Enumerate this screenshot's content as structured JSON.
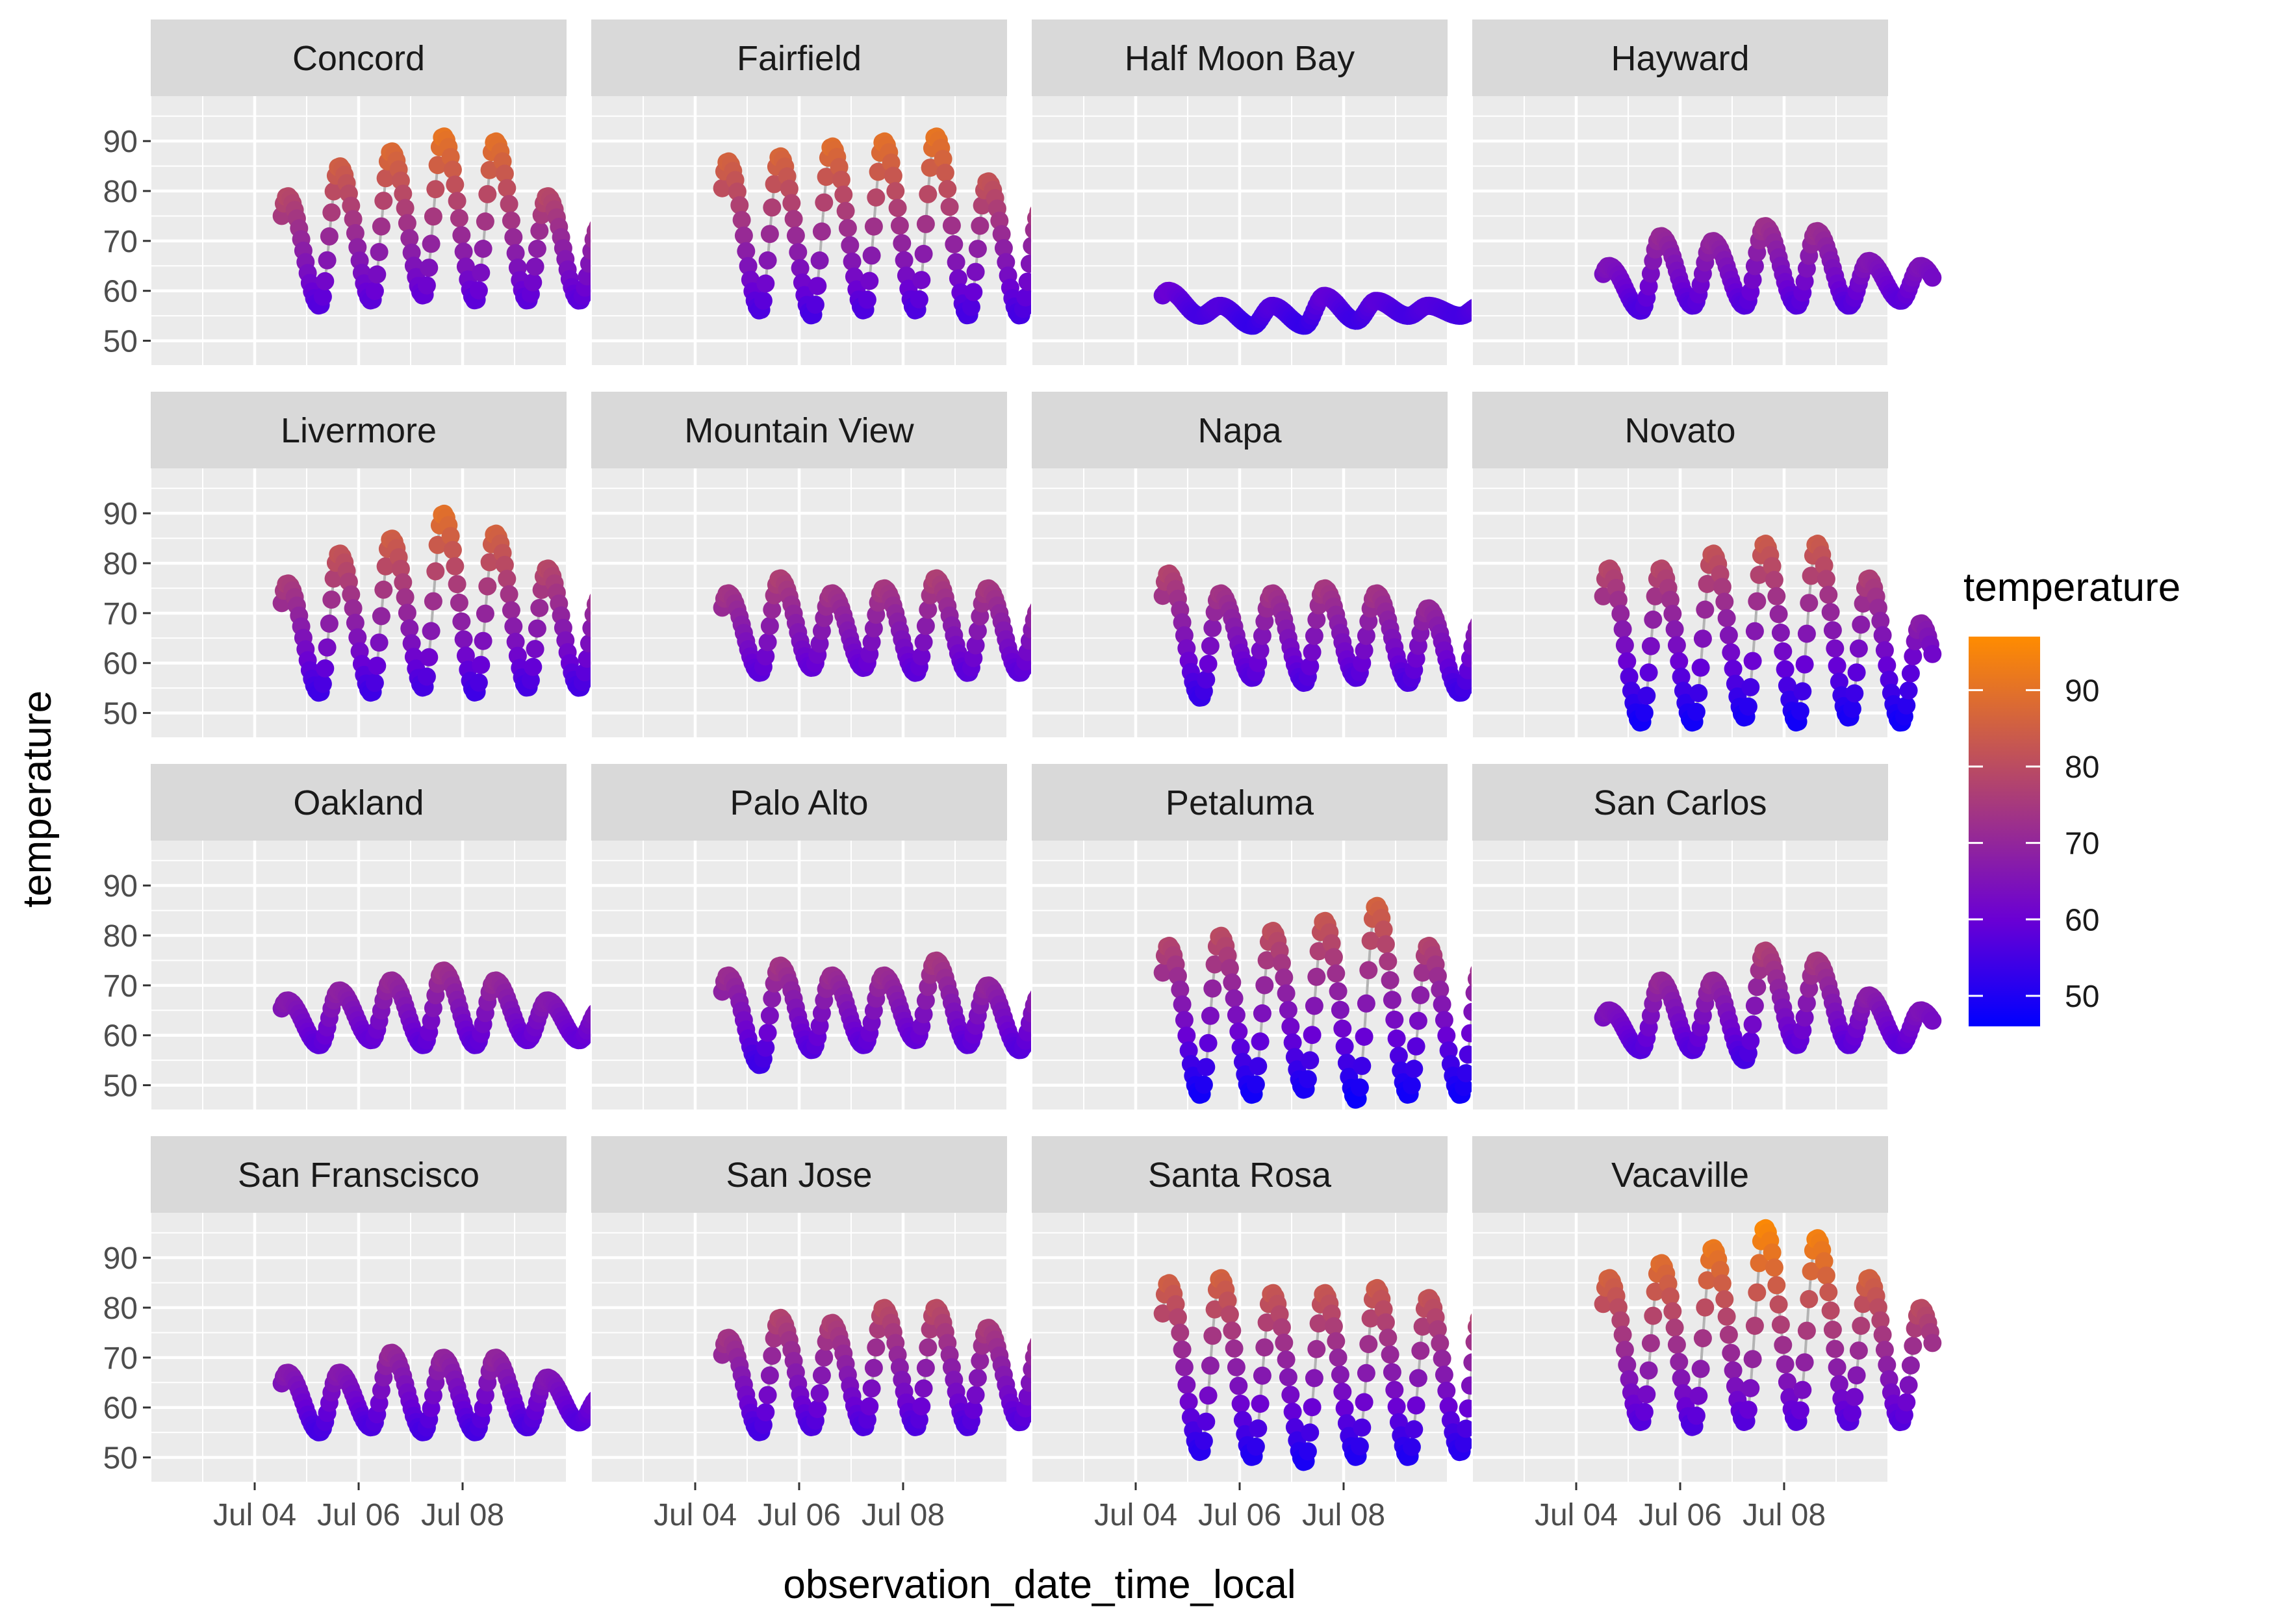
{
  "chart_data": {
    "type": "scatter",
    "facet_by": "station",
    "layout": {
      "rows": 4,
      "cols": 4
    },
    "xlabel": "observation_date_time_local",
    "ylabel": "temperature",
    "x_range": [
      "2017-07-02",
      "2017-07-10"
    ],
    "x_ticks": [
      {
        "value": "2017-07-04",
        "label": "Jul 04"
      },
      {
        "value": "2017-07-06",
        "label": "Jul 06"
      },
      {
        "value": "2017-07-08",
        "label": "Jul 08"
      }
    ],
    "y_range": [
      45,
      99
    ],
    "y_ticks": [
      50,
      60,
      70,
      80,
      90
    ],
    "grid": true,
    "lines_connect_points": true,
    "line_color": "#b3b3b3",
    "colors": {
      "panel_bg": "#ebebeb",
      "strip_bg": "#d9d9d9",
      "grid": "#ffffff"
    },
    "legend": {
      "title": "temperature",
      "position": "right",
      "ticks": [
        50,
        60,
        70,
        80,
        90
      ],
      "range": [
        46,
        97
      ],
      "color_low": "#0000ff",
      "color_mid": "#6a00d4",
      "color_mid_value": 60,
      "color_high": "#ff8c00"
    },
    "panels": [
      {
        "name": "Concord",
        "lows": [
          57,
          58,
          59,
          58,
          58,
          58,
          58
        ],
        "highs": [
          79,
          85,
          88,
          91,
          90,
          79,
          73,
          80
        ]
      },
      {
        "name": "Fairfield",
        "lows": [
          56,
          55,
          56,
          56,
          55,
          55,
          55
        ],
        "highs": [
          86,
          87,
          89,
          90,
          91,
          82,
          76,
          82
        ]
      },
      {
        "name": "Half Moon Bay",
        "lows": [
          55,
          53,
          53,
          54,
          55,
          55,
          55
        ],
        "highs": [
          60,
          57,
          57,
          59,
          58,
          57,
          57,
          63
        ]
      },
      {
        "name": "Hayward",
        "lows": [
          56,
          57,
          57,
          57,
          57,
          58,
          57
        ],
        "highs": [
          65,
          71,
          70,
          73,
          72,
          66,
          65,
          68
        ]
      },
      {
        "name": "Livermore",
        "lows": [
          54,
          54,
          55,
          54,
          55,
          55,
          54
        ],
        "highs": [
          76,
          82,
          85,
          90,
          86,
          79,
          73,
          80
        ]
      },
      {
        "name": "Mountain View",
        "lows": [
          58,
          59,
          59,
          58,
          58,
          58,
          58
        ],
        "highs": [
          74,
          77,
          74,
          75,
          77,
          75,
          71,
          73
        ]
      },
      {
        "name": "Napa",
        "lows": [
          53,
          57,
          56,
          57,
          56,
          54,
          50
        ],
        "highs": [
          78,
          74,
          74,
          75,
          74,
          71,
          68,
          72
        ]
      },
      {
        "name": "Novato",
        "lows": [
          48,
          48,
          49,
          48,
          49,
          48,
          47
        ],
        "highs": [
          79,
          79,
          82,
          84,
          84,
          77,
          68,
          77
        ]
      },
      {
        "name": "Oakland",
        "lows": [
          58,
          59,
          58,
          58,
          59,
          59,
          58
        ],
        "highs": [
          67,
          69,
          71,
          73,
          71,
          67,
          65,
          70
        ]
      },
      {
        "name": "Palo Alto",
        "lows": [
          54,
          57,
          58,
          59,
          58,
          57,
          57
        ],
        "highs": [
          72,
          74,
          72,
          72,
          75,
          70,
          68,
          70
        ]
      },
      {
        "name": "Petaluma",
        "lows": [
          48,
          48,
          49,
          47,
          48,
          48,
          48
        ],
        "highs": [
          78,
          80,
          81,
          83,
          86,
          78,
          73,
          75
        ]
      },
      {
        "name": "San Carlos",
        "lows": [
          57,
          57,
          55,
          58,
          58,
          58,
          58
        ],
        "highs": [
          65,
          71,
          71,
          77,
          75,
          68,
          65,
          73
        ]
      },
      {
        "name": "San Franscisco",
        "lows": [
          55,
          56,
          55,
          55,
          56,
          57,
          58
        ],
        "highs": [
          67,
          67,
          71,
          70,
          70,
          66,
          62,
          70
        ]
      },
      {
        "name": "San Jose",
        "lows": [
          55,
          56,
          56,
          56,
          56,
          57,
          57
        ],
        "highs": [
          74,
          78,
          77,
          80,
          80,
          76,
          73,
          74
        ]
      },
      {
        "name": "Santa Rosa",
        "lows": [
          51,
          50,
          49,
          50,
          50,
          51,
          51
        ],
        "highs": [
          85,
          86,
          83,
          83,
          84,
          82,
          78,
          79
        ]
      },
      {
        "name": "Vacaville",
        "lows": [
          57,
          56,
          57,
          57,
          57,
          57,
          56
        ],
        "highs": [
          86,
          89,
          92,
          96,
          94,
          86,
          80,
          85
        ]
      }
    ]
  }
}
